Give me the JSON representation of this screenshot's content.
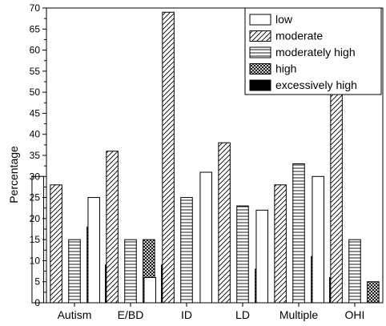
{
  "chart_data": {
    "type": "bar",
    "categories": [
      "Autism",
      "E/BD",
      "ID",
      "LD",
      "Multiple",
      "OHI"
    ],
    "series": [
      {
        "name": "low",
        "pattern": "empty",
        "values": [
          30,
          25,
          6,
          31,
          22,
          30
        ]
      },
      {
        "name": "moderate",
        "pattern": "diagonal",
        "values": [
          28,
          36,
          69,
          38,
          28,
          50
        ]
      },
      {
        "name": "moderately high",
        "pattern": "horizontal",
        "values": [
          15,
          15,
          25,
          23,
          33,
          15
        ]
      },
      {
        "name": "high",
        "pattern": "crosshatch",
        "values": [
          18,
          15,
          0,
          8,
          11,
          5
        ]
      },
      {
        "name": "excessively high",
        "pattern": "solid",
        "values": [
          9,
          9,
          0,
          0,
          6,
          0
        ]
      }
    ],
    "ylabel": "Percentage",
    "xlabel": "",
    "ylim": [
      0,
      70
    ],
    "yticks": [
      0,
      5,
      10,
      15,
      20,
      25,
      30,
      35,
      40,
      45,
      50,
      55,
      60,
      65,
      70
    ],
    "legend_position": "top-right",
    "grid": false
  }
}
